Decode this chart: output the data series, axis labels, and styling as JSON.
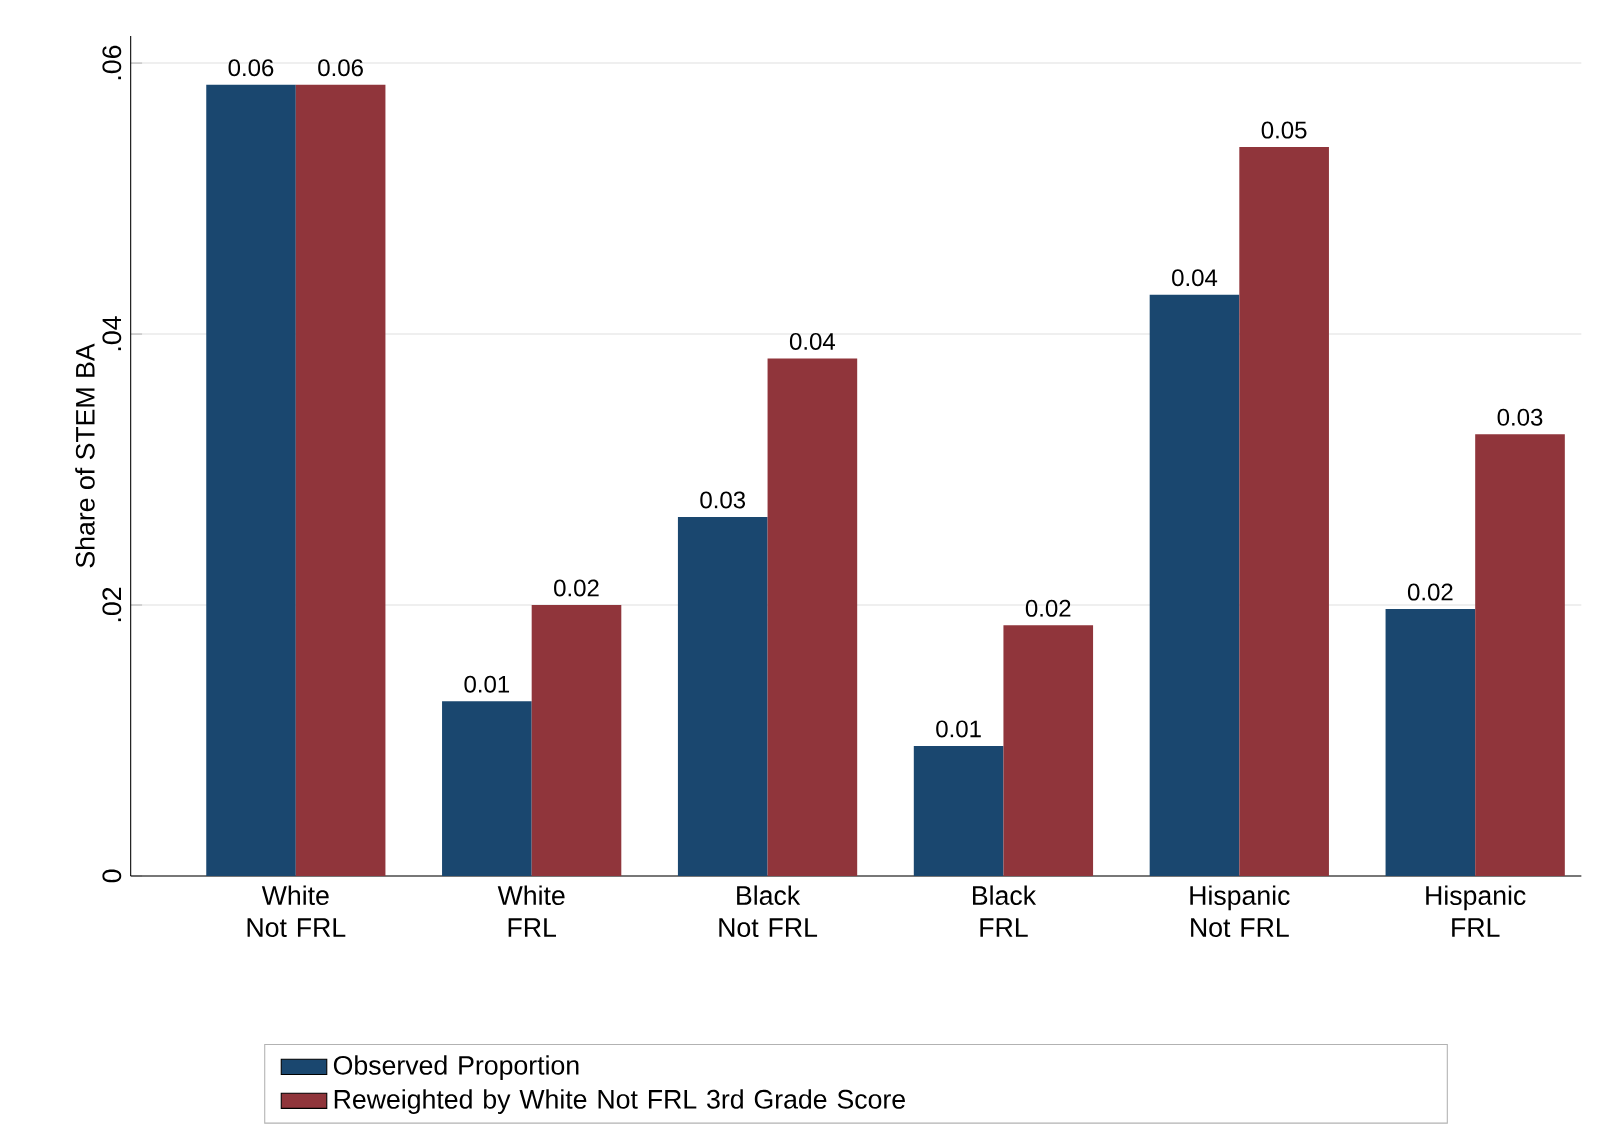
{
  "chart_data": {
    "type": "bar",
    "ylabel": "Share of STEM BA",
    "categories": [
      "White Not FRL",
      "White FRL",
      "Black Not FRL",
      "Black FRL",
      "Hispanic Not FRL",
      "Hispanic FRL"
    ],
    "series": [
      {
        "name": "Observed Proportion",
        "color": "#1a476f",
        "values": [
          0.0584,
          0.0129,
          0.0265,
          0.0096,
          0.0429,
          0.0197
        ],
        "value_labels": [
          "0.06",
          "0.01",
          "0.03",
          "0.01",
          "0.04",
          "0.02"
        ]
      },
      {
        "name": "Reweighted by White Not FRL 3rd Grade Score",
        "color": "#90353b",
        "values": [
          0.0584,
          0.02,
          0.0382,
          0.0185,
          0.0538,
          0.0326
        ],
        "value_labels": [
          "0.06",
          "0.02",
          "0.04",
          "0.02",
          "0.05",
          "0.03"
        ]
      }
    ],
    "ylim": [
      0,
      0.062
    ],
    "yticks": [
      {
        "value": 0,
        "label": "0"
      },
      {
        "value": 0.02,
        "label": ".02"
      },
      {
        "value": 0.04,
        "label": ".04"
      },
      {
        "value": 0.06,
        "label": ".06"
      }
    ],
    "grid": "y",
    "legend": "bottom"
  }
}
